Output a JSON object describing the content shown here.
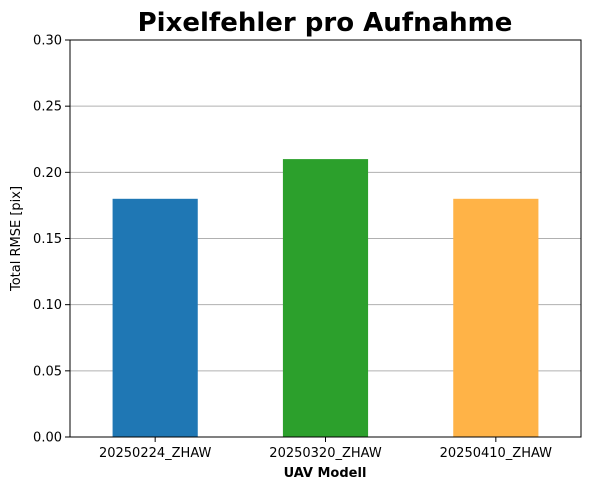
{
  "chart_data": {
    "type": "bar",
    "title": "Pixelfehler pro Aufnahme",
    "xlabel": "UAV Modell",
    "ylabel": "Total RMSE [pix]",
    "categories": [
      "20250224_ZHAW",
      "20250320_ZHAW",
      "20250410_ZHAW"
    ],
    "values": [
      0.18,
      0.21,
      0.18
    ],
    "colors": [
      "#1f77b4",
      "#2ca02c",
      "#ffb347"
    ],
    "ylim": [
      0,
      0.3
    ],
    "yticks": [
      "0.00",
      "0.05",
      "0.10",
      "0.15",
      "0.20",
      "0.25",
      "0.30"
    ],
    "grid": "y-axis horizontal",
    "legend": "none"
  }
}
